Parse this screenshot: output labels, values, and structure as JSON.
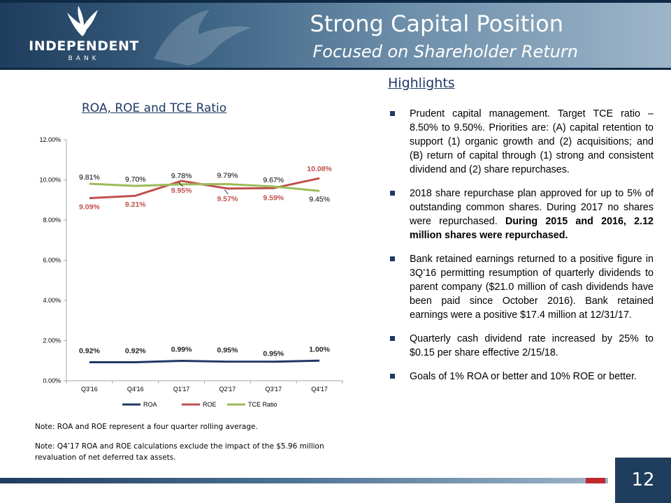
{
  "header": {
    "title": "Strong Capital Position",
    "subtitle": "Focused on Shareholder Return",
    "logo_name": "INDEPENDENT",
    "logo_sub": "BANK"
  },
  "colors": {
    "header_dark": "#1f3d5c",
    "title_blue": "#1f3864",
    "roa": "#1f3864",
    "roe": "#c0504d",
    "tce": "#9bbb59",
    "accent_red": "#c0282e"
  },
  "chart_data": {
    "type": "line",
    "title": "ROA, ROE and TCE Ratio",
    "categories": [
      "Q3'16",
      "Q4'16",
      "Q1'17",
      "Q2'17",
      "Q3'17",
      "Q4'17"
    ],
    "ylim": [
      0,
      12
    ],
    "yticks": [
      "0.00%",
      "2.00%",
      "4.00%",
      "6.00%",
      "8.00%",
      "10.00%",
      "12.00%"
    ],
    "grid": false,
    "legend_position": "bottom",
    "series": [
      {
        "name": "ROA",
        "color": "#1f3864",
        "values": [
          0.92,
          0.92,
          0.99,
          0.95,
          0.95,
          1.0
        ],
        "labels": [
          "0.92%",
          "0.92%",
          "0.99%",
          "0.95%",
          "0.95%",
          "1.00%"
        ]
      },
      {
        "name": "ROE",
        "color": "#c0504d",
        "values": [
          9.09,
          9.21,
          9.95,
          9.57,
          9.59,
          10.08
        ],
        "labels": [
          "9.09%",
          "9.21%",
          "9.95%",
          "9.57%",
          "9.59%",
          "10.08%"
        ]
      },
      {
        "name": "TCE Ratio",
        "color": "#9bbb59",
        "values": [
          9.81,
          9.7,
          9.78,
          9.79,
          9.67,
          9.45
        ],
        "labels": [
          "9.81%",
          "9.70%",
          "9.78%",
          "9.79%",
          "9.67%",
          "9.45%"
        ]
      }
    ]
  },
  "notes": {
    "note1": "Note:  ROA and ROE represent a four quarter rolling average.",
    "note2": "Note:  Q4’17 ROA and ROE calculations exclude the impact of the  $5.96 million revaluation of net deferred tax assets."
  },
  "highlights": {
    "title": "Highlights",
    "items": [
      {
        "text": "Prudent capital management.  Target TCE ratio – 8.50% to 9.50%.  Priorities are: (A) capital retention to support (1) organic growth and (2) acquisitions;  and (B) return of capital through  (1) strong and consistent  dividend and (2) share repurchases.",
        "bold": ""
      },
      {
        "text": "2018 share repurchase plan approved  for up to 5% of outstanding  common  shares. During 2017 no shares were repurchased. ",
        "bold": "During 2015 and 2016, 2.12 million  shares were repurchased."
      },
      {
        "text": "Bank retained earnings returned to a positive figure in 3Q’16 permitting  resumption  of quarterly dividends  to parent company ($21.0 million of cash dividends  have been paid since October 2016).  Bank retained earnings were a positive  $17.4 million  at 12/31/17.",
        "bold": ""
      },
      {
        "text": "Quarterly cash dividend  rate increased by 25% to $0.15 per share effective  2/15/18.",
        "bold": ""
      },
      {
        "text": "Goals of 1% ROA or better and 10% ROE or better.",
        "bold": ""
      }
    ]
  },
  "footer": {
    "page_number": "12"
  }
}
